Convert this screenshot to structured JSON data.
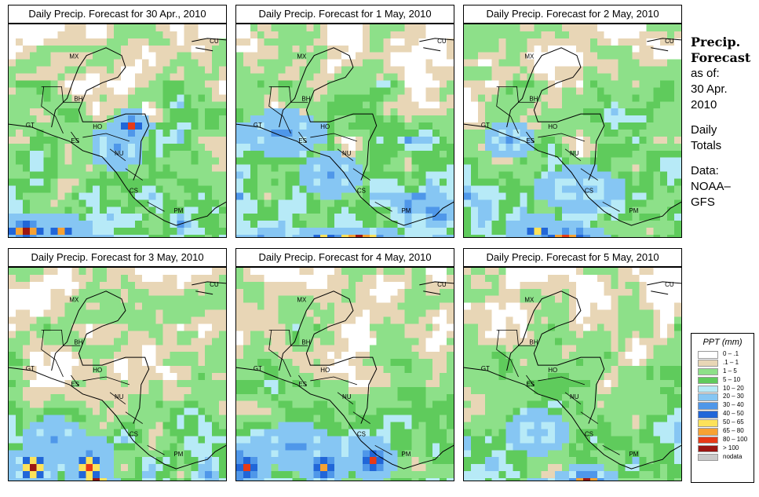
{
  "panels": [
    {
      "title": "Daily Precip. Forecast for  30 Apr., 2010",
      "pattern": 0
    },
    {
      "title": "Daily Precip. Forecast for  1 May, 2010",
      "pattern": 1
    },
    {
      "title": "Daily Precip. Forecast for  2 May, 2010",
      "pattern": 2
    },
    {
      "title": "Daily Precip. Forecast for  3 May, 2010",
      "pattern": 3
    },
    {
      "title": "Daily Precip. Forecast for  4 May, 2010",
      "pattern": 4
    },
    {
      "title": "Daily Precip. Forecast for  5 May, 2010",
      "pattern": 5
    }
  ],
  "sidebar": {
    "title_line1": "Precip.",
    "title_line2": "Forecast",
    "asof": "as of:",
    "date_line1": "30 Apr.",
    "date_line2": "2010",
    "totals_line1": "Daily",
    "totals_line2": "Totals",
    "data_line1": "Data:",
    "data_line2": "NOAA–",
    "data_line3": "GFS"
  },
  "legend": {
    "title": "PPT (mm)",
    "items": [
      {
        "label": "0 – .1",
        "color": "#ffffff"
      },
      {
        "label": ".1 – 1",
        "color": "#e8d6b6"
      },
      {
        "label": "1 – 5",
        "color": "#8de089"
      },
      {
        "label": "5 – 10",
        "color": "#5fcb5c"
      },
      {
        "label": "10 – 20",
        "color": "#b7eaf7"
      },
      {
        "label": "20 – 30",
        "color": "#86c6f3"
      },
      {
        "label": "30 – 40",
        "color": "#4f97e9"
      },
      {
        "label": "40 – 50",
        "color": "#2166d8"
      },
      {
        "label": "50 – 65",
        "color": "#fde25a"
      },
      {
        "label": "65 – 80",
        "color": "#f7a233"
      },
      {
        "label": "80 – 100",
        "color": "#e83a16"
      },
      {
        "label": "> 100",
        "color": "#9c1612"
      },
      {
        "label": "nodata",
        "color": "#c9c9c9"
      }
    ]
  },
  "country_labels": [
    "MX",
    "BH",
    "GT",
    "HO",
    "ES",
    "NU",
    "CS",
    "PM",
    "CU"
  ]
}
